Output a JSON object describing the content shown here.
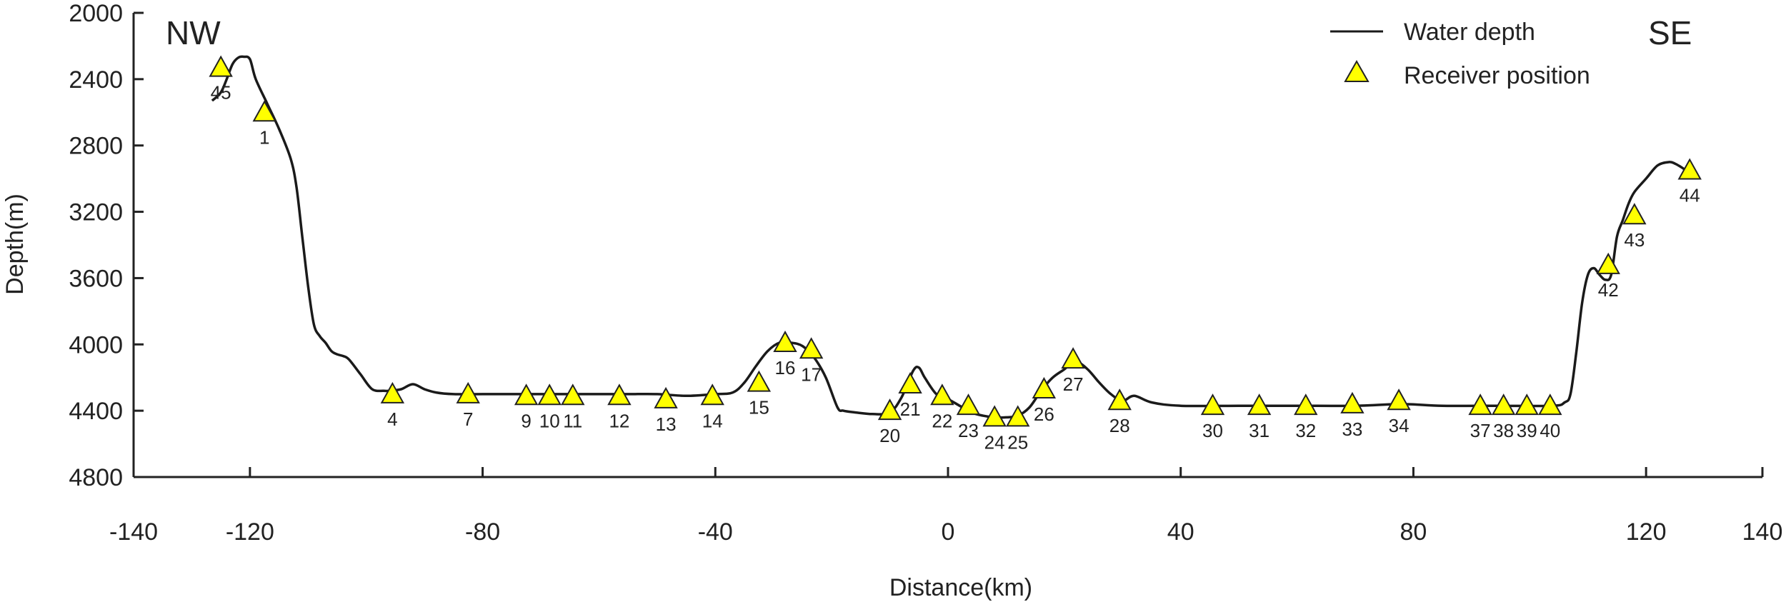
{
  "chart_data": {
    "type": "line",
    "title": "",
    "xlabel": "Distance(km)",
    "ylabel": "Depth(m)",
    "xlim": [
      -140,
      140
    ],
    "ylim": [
      4800,
      2000
    ],
    "xticks": [
      -140,
      -120,
      -80,
      -40,
      0,
      40,
      80,
      120,
      140
    ],
    "yticks": [
      2000,
      2400,
      2800,
      3200,
      3600,
      4000,
      4400,
      4800
    ],
    "y_inverted": true,
    "grid": false,
    "legend_position": "top-right",
    "annotations": {
      "left": "NW",
      "right": "SE"
    },
    "series": [
      {
        "name": "Water depth",
        "style": "line",
        "color": "#1a1a1a",
        "x": [
          -126.5,
          -125,
          -124,
          -123,
          -122,
          -121,
          -120,
          -119,
          -117,
          -115,
          -113,
          -112,
          -111,
          -110,
          -109,
          -108,
          -107,
          -106,
          -105,
          -104,
          -103,
          -101,
          -99,
          -97,
          -96,
          -94,
          -92,
          -90,
          -88,
          -85,
          -80,
          -75,
          -70,
          -65,
          -60,
          -55,
          -50,
          -45,
          -40,
          -37,
          -35,
          -33,
          -31,
          -29,
          -27,
          -25,
          -23,
          -21,
          -19,
          -18,
          -16,
          -13,
          -10,
          -8,
          -6,
          -5,
          -4,
          -2,
          0,
          2,
          4,
          6,
          8,
          10,
          12,
          14,
          16,
          18,
          20,
          21,
          22,
          24,
          26,
          28,
          30,
          32,
          35,
          40,
          50,
          60,
          70,
          78,
          85,
          95,
          104,
          106,
          107,
          108,
          109,
          110,
          111,
          112,
          113,
          114,
          115,
          116,
          117,
          118,
          120,
          122,
          124,
          125,
          126,
          127,
          128
        ],
        "y": [
          2530,
          2480,
          2400,
          2310,
          2270,
          2265,
          2280,
          2400,
          2550,
          2700,
          2880,
          3050,
          3350,
          3650,
          3880,
          3950,
          3990,
          4040,
          4060,
          4070,
          4090,
          4180,
          4270,
          4280,
          4280,
          4270,
          4240,
          4270,
          4290,
          4300,
          4300,
          4300,
          4300,
          4300,
          4300,
          4300,
          4300,
          4310,
          4300,
          4290,
          4230,
          4130,
          4040,
          3990,
          3990,
          4010,
          4080,
          4200,
          4380,
          4400,
          4410,
          4420,
          4410,
          4320,
          4160,
          4140,
          4200,
          4300,
          4330,
          4370,
          4410,
          4430,
          4440,
          4440,
          4430,
          4380,
          4280,
          4200,
          4150,
          4120,
          4100,
          4150,
          4230,
          4300,
          4340,
          4310,
          4350,
          4370,
          4370,
          4370,
          4370,
          4360,
          4370,
          4370,
          4370,
          4350,
          4300,
          4050,
          3750,
          3580,
          3540,
          3580,
          3610,
          3580,
          3350,
          3250,
          3150,
          3080,
          3000,
          2920,
          2900,
          2910,
          2930,
          2950,
          2950
        ]
      },
      {
        "name": "Receiver position",
        "style": "marker-triangle",
        "color": "#ffff00",
        "points": [
          {
            "label": "45",
            "x": -125,
            "y": 2330
          },
          {
            "label": "1",
            "x": -117.5,
            "y": 2600
          },
          {
            "label": "4",
            "x": -95.5,
            "y": 4300
          },
          {
            "label": "7",
            "x": -82.5,
            "y": 4300
          },
          {
            "label": "9",
            "x": -72.5,
            "y": 4310
          },
          {
            "label": "10",
            "x": -68.5,
            "y": 4310
          },
          {
            "label": "11",
            "x": -64.5,
            "y": 4310
          },
          {
            "label": "12",
            "x": -56.5,
            "y": 4310
          },
          {
            "label": "13",
            "x": -48.5,
            "y": 4330
          },
          {
            "label": "14",
            "x": -40.5,
            "y": 4310
          },
          {
            "label": "15",
            "x": -32.5,
            "y": 4230
          },
          {
            "label": "16",
            "x": -28,
            "y": 3990
          },
          {
            "label": "17",
            "x": -23.5,
            "y": 4030
          },
          {
            "label": "20",
            "x": -10,
            "y": 4400
          },
          {
            "label": "21",
            "x": -6.5,
            "y": 4240
          },
          {
            "label": "22",
            "x": -1,
            "y": 4310
          },
          {
            "label": "23",
            "x": 3.5,
            "y": 4370
          },
          {
            "label": "24",
            "x": 8,
            "y": 4440
          },
          {
            "label": "25",
            "x": 12,
            "y": 4440
          },
          {
            "label": "26",
            "x": 16.5,
            "y": 4270
          },
          {
            "label": "27",
            "x": 21.5,
            "y": 4090
          },
          {
            "label": "28",
            "x": 29.5,
            "y": 4340
          },
          {
            "label": "30",
            "x": 45.5,
            "y": 4370
          },
          {
            "label": "31",
            "x": 53.5,
            "y": 4370
          },
          {
            "label": "32",
            "x": 61.5,
            "y": 4370
          },
          {
            "label": "33",
            "x": 69.5,
            "y": 4360
          },
          {
            "label": "34",
            "x": 77.5,
            "y": 4340
          },
          {
            "label": "37",
            "x": 91.5,
            "y": 4370
          },
          {
            "label": "38",
            "x": 95.5,
            "y": 4370
          },
          {
            "label": "39",
            "x": 99.5,
            "y": 4370
          },
          {
            "label": "40",
            "x": 103.5,
            "y": 4370
          },
          {
            "label": "42",
            "x": 113.5,
            "y": 3520
          },
          {
            "label": "43",
            "x": 118,
            "y": 3220
          },
          {
            "label": "44",
            "x": 127.5,
            "y": 2950
          }
        ]
      }
    ]
  }
}
